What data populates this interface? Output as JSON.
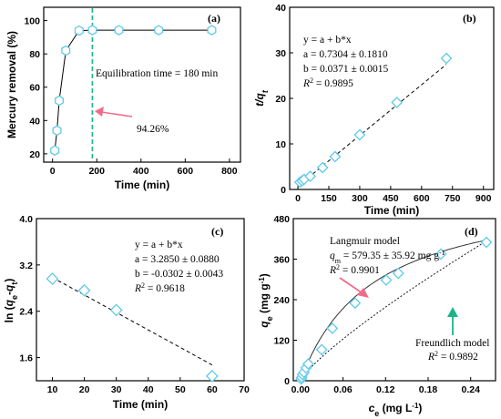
{
  "chart_data": [
    {
      "id": "a",
      "type": "line",
      "panel_label": "(a)",
      "xlabel": "Time (min)",
      "ylabel": "Mercury removal (%)",
      "xlim": [
        -40,
        850
      ],
      "ylim": [
        15,
        108
      ],
      "xticks": [
        0,
        200,
        400,
        600,
        800
      ],
      "yticks": [
        20,
        40,
        60,
        80,
        100
      ],
      "x": [
        10,
        20,
        30,
        60,
        120,
        180,
        300,
        480,
        720
      ],
      "y": [
        22,
        34,
        52,
        82,
        94,
        94.26,
        94.26,
        94.26,
        94.26
      ],
      "equilibrium_x": 180,
      "equilibrium_color": "#1ab58a",
      "equilibrium_label": "Equilibration time = 180 min",
      "pointer_value_label": "94.26%",
      "pointer_color": "#f06b8a",
      "marker": "hexagon",
      "marker_color": "#5fc9ea"
    },
    {
      "id": "b",
      "type": "scatter",
      "panel_label": "(b)",
      "xlabel": "Time (min)",
      "ylabel_main": "t/q",
      "ylabel_sub": "t",
      "xlim": [
        -40,
        950
      ],
      "ylim": [
        0,
        40
      ],
      "xticks": [
        0,
        150,
        300,
        450,
        600,
        750,
        900
      ],
      "yticks": [
        0,
        10,
        20,
        30,
        40
      ],
      "x": [
        10,
        20,
        30,
        60,
        120,
        180,
        300,
        480,
        720
      ],
      "y": [
        1.6,
        1.9,
        2.2,
        2.9,
        4.8,
        7.2,
        12.0,
        19.1,
        28.8
      ],
      "fit": {
        "a": 0.7304,
        "b": 0.0371,
        "x_range": [
          0,
          720
        ]
      },
      "annotation": {
        "equation": "y = a + b*x",
        "a_line": "a = 0.7304 ± 0.1810",
        "b_line": "b = 0.0371 ± 0.0015",
        "r2_value": " = 0.9895"
      },
      "marker": "diamond",
      "marker_color": "#5fc9ea"
    },
    {
      "id": "c",
      "type": "scatter",
      "panel_label": "(c)",
      "xlabel": "Time (min)",
      "ylabel_prefix": "ln (",
      "ylabel_q1": "q",
      "ylabel_sub1": "e",
      "ylabel_mid": "-",
      "ylabel_q2": "q",
      "ylabel_sub2": "t",
      "ylabel_suffix": ")",
      "xlim": [
        5,
        70
      ],
      "ylim": [
        1.2,
        4.0
      ],
      "xticks": [
        10,
        20,
        30,
        40,
        50,
        60,
        70
      ],
      "yticks": [
        1.6,
        2.4,
        3.2,
        4.0
      ],
      "ytick_labels": [
        "1.6",
        "2.4",
        "3.2",
        "4.0"
      ],
      "x": [
        10,
        20,
        30,
        60
      ],
      "y": [
        2.96,
        2.76,
        2.42,
        1.28
      ],
      "fit": {
        "a": 3.285,
        "b": -0.0302,
        "x_range": [
          10,
          60
        ]
      },
      "annotation": {
        "equation": "y = a + b*x",
        "a_line": "a = 3.2850 ± 0.0880",
        "b_line": "b = -0.0302 ± 0.0043",
        "r2_value": " = 0.9618"
      },
      "marker": "diamond",
      "marker_color": "#5fc9ea"
    },
    {
      "id": "d",
      "type": "scatter",
      "panel_label": "(d)",
      "xlabel_main": "c",
      "xlabel_sub": "e",
      "xlabel_unit": " (mg L",
      "xlabel_sup": "-1",
      "xlabel_close": ")",
      "ylabel_main": "q",
      "ylabel_sub": "e",
      "ylabel_unit": " (mg g",
      "ylabel_sup": "-1",
      "ylabel_close": ")",
      "xlim": [
        -0.01,
        0.275
      ],
      "ylim": [
        0,
        480
      ],
      "xticks": [
        0.0,
        0.06,
        0.12,
        0.18,
        0.24
      ],
      "xtick_labels": [
        "0.00",
        "0.06",
        "0.12",
        "0.18",
        "0.24"
      ],
      "yticks": [
        0,
        120,
        240,
        360,
        480
      ],
      "x": [
        0.001,
        0.002,
        0.003,
        0.005,
        0.008,
        0.011,
        0.03,
        0.045,
        0.077,
        0.121,
        0.138,
        0.198,
        0.262
      ],
      "y": [
        5,
        10,
        18,
        25,
        38,
        50,
        92,
        155,
        230,
        298,
        318,
        375,
        410
      ],
      "langmuir": {
        "label": "Langmuir model",
        "qm_value": " = 579.35 ± 35.92 mg g",
        "qm_sup": "-1",
        "r2_value": " = 0.9901",
        "color": "#f06b8a",
        "KL": 9.75
      },
      "freundlich": {
        "label": "Freundlich model",
        "r2_value": " = 0.9892",
        "color": "#1ab58a",
        "KF": 1240,
        "n_inv": 0.82
      },
      "marker": "diamond",
      "marker_color": "#5fc9ea"
    }
  ]
}
